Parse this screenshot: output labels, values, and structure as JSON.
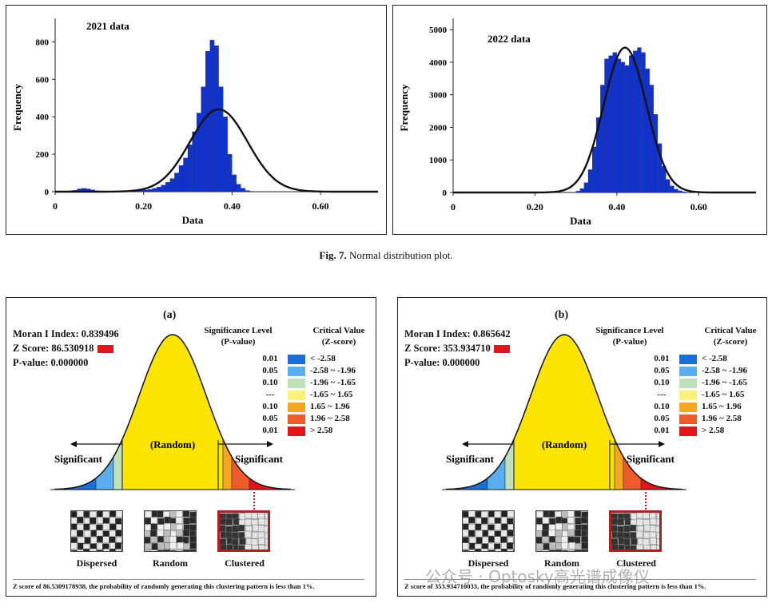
{
  "chart_data": [
    {
      "type": "histogram",
      "title": "2021 data",
      "xlabel": "Data",
      "ylabel": "Frequency",
      "xlim": [
        0,
        0.73
      ],
      "ylim": [
        0,
        900
      ],
      "xticks": [
        "0",
        "0.20",
        "0.40",
        "0.60"
      ],
      "yticks": [
        "0",
        "200",
        "400",
        "600",
        "800"
      ],
      "bin_width": 0.01,
      "bin_start": 0.02,
      "counts": [
        0,
        5,
        8,
        15,
        18,
        15,
        10,
        5,
        3,
        2,
        2,
        2,
        3,
        3,
        4,
        5,
        6,
        8,
        10,
        12,
        18,
        25,
        35,
        50,
        70,
        100,
        140,
        180,
        250,
        320,
        420,
        560,
        750,
        810,
        780,
        560,
        400,
        200,
        90,
        40,
        18,
        6,
        2
      ],
      "fit_curve": {
        "type": "normal",
        "mean": 0.37,
        "sd": 0.065,
        "peak": 440
      }
    },
    {
      "type": "histogram",
      "title": "2022 data",
      "xlabel": "Data",
      "ylabel": "Frequency",
      "xlim": [
        0,
        0.74
      ],
      "ylim": [
        0,
        5200
      ],
      "xticks": [
        "0",
        "0.20",
        "0.40",
        "0.60"
      ],
      "yticks": [
        "0",
        "1000",
        "2000",
        "3000",
        "4000",
        "5000"
      ],
      "bin_width": 0.01,
      "bin_start": 0.3,
      "counts": [
        40,
        120,
        300,
        700,
        1400,
        2300,
        3300,
        4100,
        4200,
        4300,
        4100,
        4000,
        3900,
        4200,
        4350,
        4450,
        4300,
        3800,
        3300,
        2400,
        1500,
        800,
        400,
        200,
        100,
        50,
        20
      ],
      "fit_curve": {
        "type": "normal",
        "mean": 0.42,
        "sd": 0.052,
        "peak": 4450
      }
    },
    {
      "type": "normal-curve-diagram",
      "panel": "(a)",
      "moran_index_label": "Moran I Index: 0.839496",
      "z_score_label": "Z Score: 86.530918",
      "p_value_label": "P-value: 0.000000",
      "z_score": 86.530918,
      "center_label": "(Random)",
      "left_label": "Significant",
      "right_label": "Significant"
    },
    {
      "type": "normal-curve-diagram",
      "panel": "(b)",
      "moran_index_label": "Moran I Index: 0.865642",
      "z_score_label": "Z Score: 353.934710",
      "p_value_label": "P-value: 0.000000",
      "z_score": 353.93471,
      "center_label": "(Random)",
      "left_label": "Significant",
      "right_label": "Significant"
    }
  ],
  "caption": {
    "fig": "Fig. 7.",
    "text": "Normal distribution plot."
  },
  "legend": {
    "sig_head_1": "Significance Level",
    "sig_head_2": "(P-value)",
    "crit_head_1": "Critical Value",
    "crit_head_2": "(Z-score)",
    "rows": [
      {
        "p": "0.01",
        "z": "< -2.58",
        "color": "#1a6fd6"
      },
      {
        "p": "0.05",
        "z": "-2.58 ~ -1.96",
        "color": "#5aaef0"
      },
      {
        "p": "0.10",
        "z": "-1.96 ~ -1.65",
        "color": "#bfe0b8"
      },
      {
        "p": "---",
        "z": "-1.65 ~ 1.65",
        "color": "#fbf07a"
      },
      {
        "p": "0.10",
        "z": "1.65 ~ 1.96",
        "color": "#f5a623"
      },
      {
        "p": "0.05",
        "z": "1.96 ~ 2.58",
        "color": "#ee5a2a"
      },
      {
        "p": "0.01",
        "z": "> 2.58",
        "color": "#e0161a"
      }
    ]
  },
  "maps": {
    "dispersed": "Dispersed",
    "random": "Random",
    "clustered": "Clustered"
  },
  "footnotes": {
    "a": "Z score of 86.5309178938, the probability of randomly generating this clustering pattern is less than 1%.",
    "b": "Z score of 353.934710033, the probability of randomly generating this clustering pattern is less than 1%."
  },
  "watermark": "公众号 · Optosky高光谱成像仪",
  "colors": {
    "bar": "#1133cc",
    "curve": "#111111",
    "yellow": "#fbe500",
    "red_box": "#e0161a"
  }
}
